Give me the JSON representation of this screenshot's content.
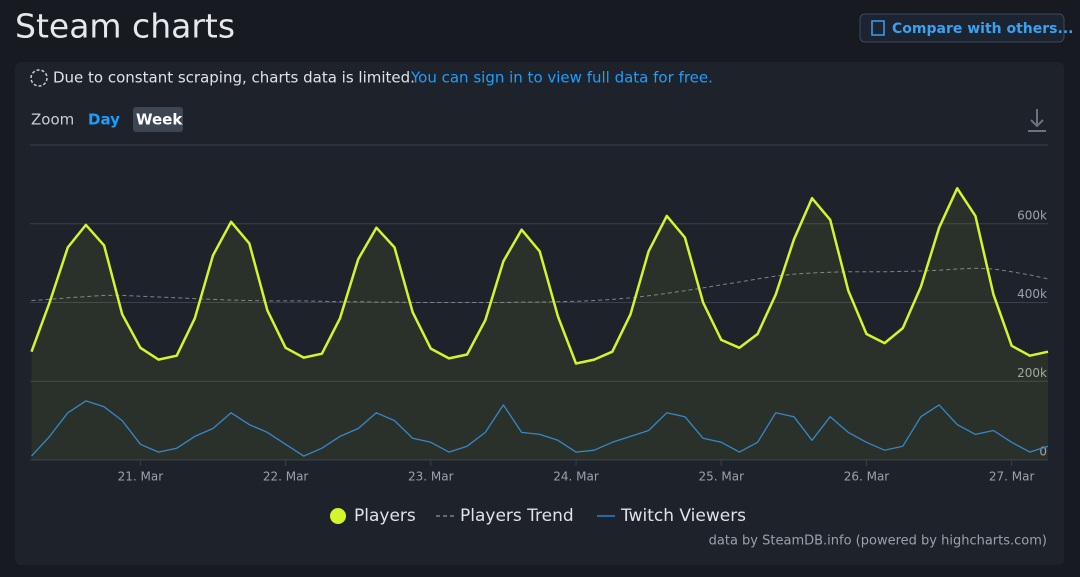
{
  "header": {
    "title": "Steam charts",
    "button": "Compare with others..."
  },
  "notice": {
    "text": "Due to constant scraping, charts data is limited.",
    "link": "You can sign in to view full data for free."
  },
  "zoom": {
    "label": "Zoom",
    "options": [
      "Day",
      "Week"
    ]
  },
  "chart_data": {
    "type": "line",
    "x": [
      20.25,
      20.375,
      20.5,
      20.625,
      20.75,
      20.875,
      21,
      21.125,
      21.25,
      21.375,
      21.5,
      21.625,
      21.75,
      21.875,
      22,
      22.125,
      22.25,
      22.375,
      22.5,
      22.625,
      22.75,
      22.875,
      23,
      23.125,
      23.25,
      23.375,
      23.5,
      23.625,
      23.75,
      23.875,
      24,
      24.125,
      24.25,
      24.375,
      24.5,
      24.625,
      24.75,
      24.875,
      25,
      25.125,
      25.25,
      25.375,
      25.5,
      25.625,
      25.75,
      25.875,
      26,
      26.125,
      26.25,
      26.375,
      26.5,
      26.625,
      26.75,
      26.875,
      27,
      27.125,
      27.25
    ],
    "xlim": [
      20.24,
      27.25
    ],
    "xticks": [
      {
        "value": 21,
        "label": "21. Mar"
      },
      {
        "value": 22,
        "label": "22. Mar"
      },
      {
        "value": 23,
        "label": "23. Mar"
      },
      {
        "value": 24,
        "label": "24. Mar"
      },
      {
        "value": 25,
        "label": "25. Mar"
      },
      {
        "value": 26,
        "label": "26. Mar"
      },
      {
        "value": 27,
        "label": "27. Mar"
      }
    ],
    "ylim": [
      0,
      800000
    ],
    "yticks": [
      0,
      {
        "value": 200000,
        "label": "200k"
      },
      {
        "value": 400000,
        "label": "400k"
      },
      {
        "value": 600000,
        "label": "600k"
      }
    ],
    "grid": true,
    "series": [
      {
        "name": "Players",
        "color": "#d4f52c",
        "style": "solid",
        "area": true,
        "values": [
          275000,
          400000,
          540000,
          597000,
          545000,
          370000,
          285000,
          255000,
          265000,
          360000,
          520000,
          605000,
          550000,
          380000,
          285000,
          260000,
          270000,
          360000,
          510000,
          590000,
          540000,
          375000,
          283000,
          258000,
          268000,
          355000,
          505000,
          585000,
          530000,
          365000,
          245000,
          255000,
          275000,
          370000,
          530000,
          620000,
          565000,
          400000,
          305000,
          285000,
          320000,
          420000,
          560000,
          665000,
          610000,
          430000,
          320000,
          297000,
          335000,
          440000,
          590000,
          690000,
          620000,
          420000,
          290000,
          265000,
          275000
        ]
      },
      {
        "name": "Players Trend",
        "color": "#7c828c",
        "style": "dashed",
        "area": false,
        "values": [
          405000,
          408000,
          412000,
          415000,
          418000,
          418000,
          416000,
          414000,
          412000,
          410000,
          408000,
          406000,
          405000,
          404000,
          404000,
          404000,
          403000,
          402000,
          402000,
          401000,
          401000,
          400000,
          400000,
          400000,
          400000,
          400000,
          400000,
          401000,
          401000,
          402000,
          403000,
          405000,
          408000,
          412000,
          417000,
          423000,
          430000,
          437000,
          445000,
          452000,
          460000,
          467000,
          472000,
          475000,
          477000,
          478000,
          478000,
          478000,
          479000,
          480000,
          482000,
          485000,
          487000,
          485000,
          478000,
          470000,
          460000
        ]
      },
      {
        "name": "Twitch Viewers",
        "color": "#2a7fd4",
        "style": "solid",
        "area": false,
        "values": [
          10000,
          60000,
          120000,
          150000,
          135000,
          100000,
          40000,
          20000,
          30000,
          60000,
          80000,
          120000,
          90000,
          70000,
          40000,
          10000,
          30000,
          60000,
          80000,
          120000,
          100000,
          55000,
          45000,
          20000,
          35000,
          70000,
          140000,
          70000,
          65000,
          50000,
          20000,
          25000,
          45000,
          60000,
          75000,
          120000,
          110000,
          55000,
          45000,
          20000,
          45000,
          120000,
          110000,
          50000,
          110000,
          70000,
          45000,
          25000,
          35000,
          110000,
          140000,
          90000,
          65000,
          75000,
          45000,
          20000,
          35000
        ]
      }
    ],
    "credits": "data by SteamDB.info (powered by highcharts.com)"
  }
}
